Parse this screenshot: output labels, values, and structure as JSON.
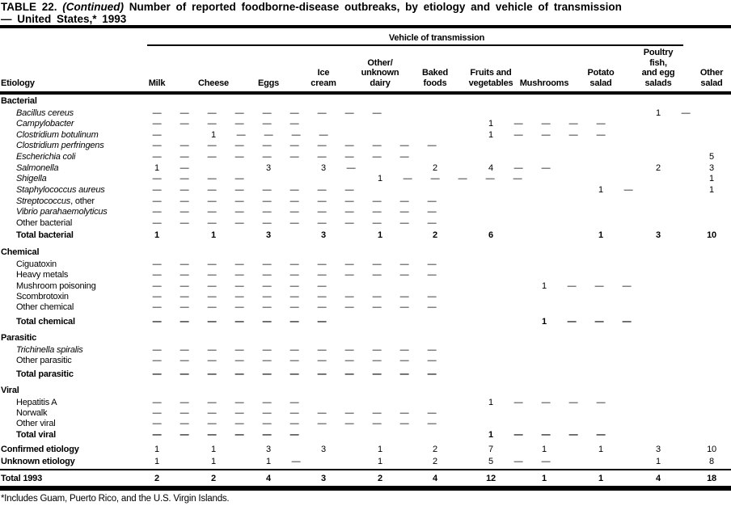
{
  "title": {
    "label_part": "TABLE 22.",
    "continued_part": "(Continued)",
    "rest_part": "Number of reported foodborne-disease outbreaks, by etiology and vehicle of transmission",
    "line2": "— United States,* 1993"
  },
  "spanner": "Vehicle of transmission",
  "etiology_header": "Etiology",
  "columns": [
    {
      "lines": [
        "Milk"
      ]
    },
    {
      "lines": [
        "Cheese"
      ]
    },
    {
      "lines": [
        "Eggs"
      ]
    },
    {
      "lines": [
        "Ice",
        "cream"
      ]
    },
    {
      "lines": [
        "Other/",
        "unknown",
        "dairy"
      ]
    },
    {
      "lines": [
        "Baked",
        "foods"
      ]
    },
    {
      "lines": [
        "Fruits and",
        "vegetables"
      ]
    },
    {
      "lines": [
        "Mushrooms"
      ]
    },
    {
      "lines": [
        "Potato",
        "salad"
      ]
    },
    {
      "lines": [
        "Poultry",
        "fish,",
        "and egg",
        "salads"
      ]
    },
    {
      "lines": [
        "Other",
        "salad"
      ]
    }
  ],
  "rows": [
    {
      "label": "Bacterial",
      "style": "section",
      "italic": false,
      "cells": []
    },
    {
      "label": "Bacillus cereus",
      "style": "item",
      "italic": true,
      "cells": [
        "—",
        "—",
        "—",
        "—",
        "—",
        "—",
        "—",
        "—",
        "—",
        "1",
        "—"
      ]
    },
    {
      "label": "Campylobacter",
      "style": "item",
      "italic": true,
      "cells": [
        "—",
        "—",
        "—",
        "—",
        "—",
        "—",
        "1",
        "—",
        "—",
        "—",
        "—"
      ]
    },
    {
      "label": "Clostridium botulinum",
      "style": "item",
      "italic": true,
      "cells": [
        "—",
        "1",
        "—",
        "—",
        "—",
        "—",
        "1",
        "—",
        "—",
        "—",
        "—"
      ]
    },
    {
      "label": "Clostridium perfringens",
      "style": "item",
      "italic": true,
      "cells": [
        "—",
        "—",
        "—",
        "—",
        "—",
        "—",
        "—",
        "—",
        "—",
        "—",
        "—"
      ]
    },
    {
      "label": "Escherichia coli",
      "style": "item",
      "italic": true,
      "cells": [
        "—",
        "—",
        "—",
        "—",
        "—",
        "—",
        "—",
        "—",
        "—",
        "—",
        "5"
      ]
    },
    {
      "label": "Salmonella",
      "style": "item",
      "italic": true,
      "cells": [
        "1",
        "—",
        "3",
        "3",
        "—",
        "2",
        "4",
        "—",
        "—",
        "2",
        "3"
      ]
    },
    {
      "label": "Shigella",
      "style": "item",
      "italic": true,
      "cells": [
        "—",
        "—",
        "—",
        "—",
        "1",
        "—",
        "—",
        "—",
        "—",
        "—",
        "1"
      ]
    },
    {
      "label": "Staphylococcus aureus",
      "style": "item",
      "italic": true,
      "cells": [
        "—",
        "—",
        "—",
        "—",
        "—",
        "—",
        "—",
        "—",
        "1",
        "—",
        "1"
      ]
    },
    {
      "label": "Streptococcus",
      "suffix": ", other",
      "style": "item",
      "italic": true,
      "cells": [
        "—",
        "—",
        "—",
        "—",
        "—",
        "—",
        "—",
        "—",
        "—",
        "—",
        "—"
      ]
    },
    {
      "label": "Vibrio parahaemolyticus",
      "style": "item",
      "italic": true,
      "cells": [
        "—",
        "—",
        "—",
        "—",
        "—",
        "—",
        "—",
        "—",
        "—",
        "—",
        "—"
      ]
    },
    {
      "label": "Other bacterial",
      "style": "item",
      "italic": false,
      "cells": [
        "—",
        "—",
        "—",
        "—",
        "—",
        "—",
        "—",
        "—",
        "—",
        "—",
        "—"
      ]
    },
    {
      "label": "Total bacterial",
      "style": "total",
      "italic": false,
      "cells": [
        "1",
        "1",
        "3",
        "3",
        "1",
        "2",
        "6",
        "",
        "1",
        "3",
        "10"
      ]
    },
    {
      "label": "Chemical",
      "style": "section",
      "italic": false,
      "cells": []
    },
    {
      "label": "Ciguatoxin",
      "style": "item",
      "italic": false,
      "cells": [
        "—",
        "—",
        "—",
        "—",
        "—",
        "—",
        "—",
        "—",
        "—",
        "—",
        "—"
      ]
    },
    {
      "label": "Heavy metals",
      "style": "item",
      "italic": false,
      "cells": [
        "—",
        "—",
        "—",
        "—",
        "—",
        "—",
        "—",
        "—",
        "—",
        "—",
        "—"
      ]
    },
    {
      "label": "Mushroom poisoning",
      "style": "item",
      "italic": false,
      "cells": [
        "—",
        "—",
        "—",
        "—",
        "—",
        "—",
        "—",
        "1",
        "—",
        "—",
        "—"
      ]
    },
    {
      "label": "Scombrotoxin",
      "style": "item",
      "italic": false,
      "cells": [
        "—",
        "—",
        "—",
        "—",
        "—",
        "—",
        "—",
        "—",
        "—",
        "—",
        "—"
      ]
    },
    {
      "label": "Other chemical",
      "style": "item",
      "italic": false,
      "cells": [
        "—",
        "—",
        "—",
        "—",
        "—",
        "—",
        "—",
        "—",
        "—",
        "—",
        "—"
      ]
    },
    {
      "label": "Total chemical",
      "style": "total",
      "italic": false,
      "cells": [
        "—",
        "—",
        "—",
        "—",
        "—",
        "—",
        "—",
        "1",
        "—",
        "—",
        "—"
      ]
    },
    {
      "label": "Parasitic",
      "style": "section",
      "italic": false,
      "cells": []
    },
    {
      "label": "Trichinella spiralis",
      "style": "item",
      "italic": true,
      "cells": [
        "—",
        "—",
        "—",
        "—",
        "—",
        "—",
        "—",
        "—",
        "—",
        "—",
        "—"
      ]
    },
    {
      "label": "Other parasitic",
      "style": "item",
      "italic": false,
      "cells": [
        "—",
        "—",
        "—",
        "—",
        "—",
        "—",
        "—",
        "—",
        "—",
        "—",
        "—"
      ]
    },
    {
      "label": "Total parasitic",
      "style": "total",
      "italic": false,
      "cells": [
        "—",
        "—",
        "—",
        "—",
        "—",
        "—",
        "—",
        "—",
        "—",
        "—",
        "—"
      ]
    },
    {
      "label": "Viral",
      "style": "section",
      "italic": false,
      "cells": []
    },
    {
      "label": "Hepatitis A",
      "style": "item",
      "italic": false,
      "cells": [
        "—",
        "—",
        "—",
        "—",
        "—",
        "—",
        "1",
        "—",
        "—",
        "—",
        "—"
      ]
    },
    {
      "label": "Norwalk",
      "style": "item",
      "italic": false,
      "cells": [
        "—",
        "—",
        "—",
        "—",
        "—",
        "—",
        "—",
        "—",
        "—",
        "—",
        "—"
      ]
    },
    {
      "label": "Other viral",
      "style": "item",
      "italic": false,
      "cells": [
        "—",
        "—",
        "—",
        "—",
        "—",
        "—",
        "—",
        "—",
        "—",
        "—",
        "—"
      ]
    },
    {
      "label": "Total viral",
      "style": "total",
      "italic": false,
      "cells": [
        "—",
        "—",
        "—",
        "—",
        "—",
        "—",
        "1",
        "—",
        "—",
        "—",
        "—"
      ]
    },
    {
      "label": "Confirmed etiology",
      "style": "summary",
      "italic": false,
      "cells": [
        "1",
        "1",
        "3",
        "3",
        "1",
        "2",
        "7",
        "1",
        "1",
        "3",
        "10"
      ]
    },
    {
      "label": "Unknown etiology",
      "style": "summary",
      "italic": false,
      "cells": [
        "1",
        "1",
        "1",
        "—",
        "1",
        "2",
        "5",
        "—",
        "—",
        "1",
        "8"
      ]
    },
    {
      "label": "Total 1993",
      "style": "grand",
      "italic": false,
      "cells": [
        "2",
        "2",
        "4",
        "3",
        "2",
        "4",
        "12",
        "1",
        "1",
        "4",
        "18"
      ]
    }
  ],
  "footnote": "*Includes Guam, Puerto Rico, and the U.S. Virgin Islands."
}
